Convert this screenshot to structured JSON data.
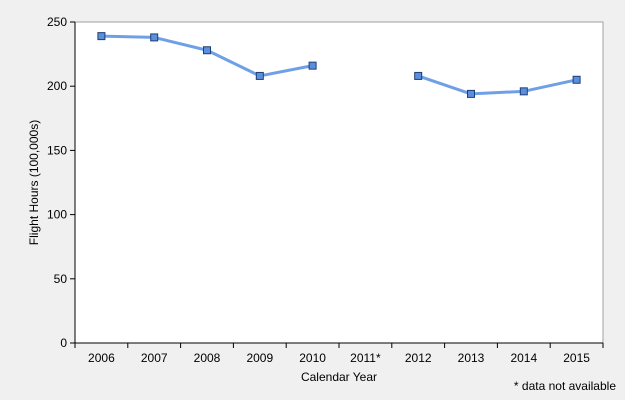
{
  "chart_data": {
    "type": "line",
    "title": "",
    "xlabel": "Calendar Year",
    "ylabel": "Flight Hours (100,000s)",
    "categories": [
      "2006",
      "2007",
      "2008",
      "2009",
      "2010",
      "2011*",
      "2012",
      "2013",
      "2014",
      "2015"
    ],
    "series": [
      {
        "values": [
          239,
          238,
          228,
          208,
          216,
          null,
          208,
          194,
          196,
          205
        ]
      }
    ],
    "ylim": [
      0,
      250
    ],
    "yticks": [
      0,
      50,
      100,
      150,
      200,
      250
    ],
    "grid": false,
    "legend": "none",
    "annotation": "* data not available",
    "colors": {
      "line": "#6fa0e6",
      "marker_fill": "#5b8fdd",
      "marker_stroke": "#1f3f73",
      "plot_bg": "#ffffff",
      "page_bg": "#f0f0f0",
      "axis": "#000000"
    }
  }
}
